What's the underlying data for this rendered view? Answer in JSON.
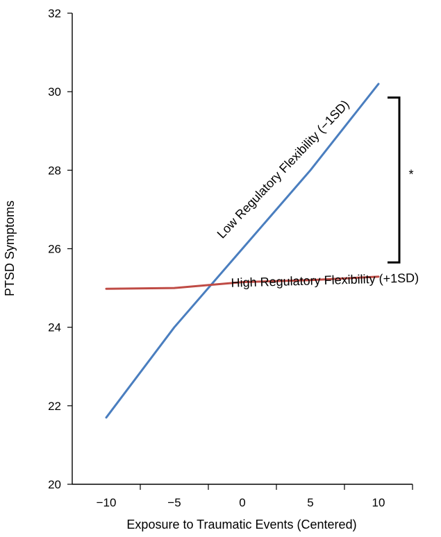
{
  "chart_data": {
    "type": "line",
    "xlabel": "Exposure to Traumatic Events (Centered)",
    "ylabel": "PTSD Symptoms",
    "xlim": [
      -12.5,
      12.5
    ],
    "ylim": [
      20,
      32
    ],
    "x_ticks": [
      -10,
      -5,
      0,
      5,
      10
    ],
    "x_tick_labels": [
      "−10",
      "−5",
      "0",
      "5",
      "10"
    ],
    "y_ticks": [
      20,
      22,
      24,
      26,
      28,
      30,
      32
    ],
    "y_tick_labels": [
      "20",
      "22",
      "24",
      "26",
      "28",
      "30",
      "32"
    ],
    "grid": false,
    "legend": "none",
    "series": [
      {
        "name": "Low Regulatory Flexibility (−1SD)",
        "color": "#4a7ebf",
        "x": [
          -10,
          -5,
          0,
          5,
          10
        ],
        "y": [
          21.7,
          24.0,
          26.0,
          28.0,
          30.2
        ]
      },
      {
        "name": "High Regulatory Flexibility (+1SD)",
        "color": "#bf4b45",
        "x": [
          -10,
          -5,
          0,
          5,
          10
        ],
        "y": [
          24.98,
          25.0,
          25.15,
          25.2,
          25.29
        ]
      }
    ],
    "annotations": [
      {
        "type": "significance-bracket",
        "label": "*",
        "y_range": [
          25.65,
          29.85
        ]
      }
    ]
  }
}
